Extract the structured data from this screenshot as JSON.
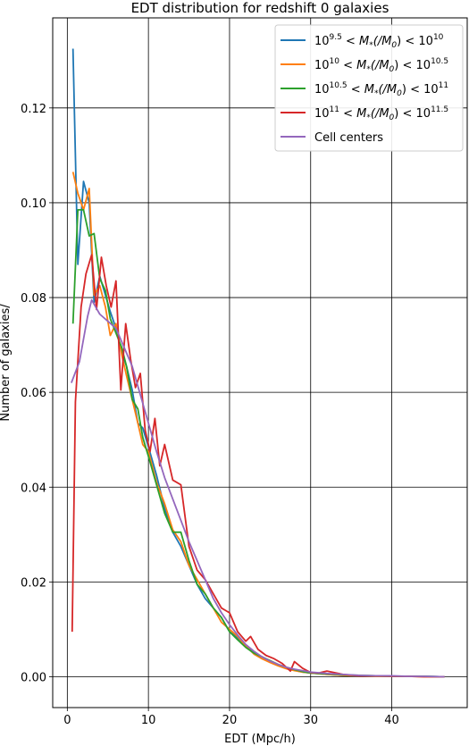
{
  "chart_data": {
    "type": "line",
    "title": "EDT distribution for redshift 0 galaxies",
    "xlabel": "EDT (Mpc/h)",
    "ylabel": "Number of galaxies/",
    "xlim": [
      -1.8,
      49.3
    ],
    "ylim": [
      -0.0065,
      0.139
    ],
    "xticks": [
      0,
      10,
      20,
      30,
      40
    ],
    "yticks": [
      0.0,
      0.02,
      0.04,
      0.06,
      0.08,
      0.1,
      0.12
    ],
    "ytick_labels": [
      "0.00",
      "0.02",
      "0.04",
      "0.06",
      "0.08",
      "0.10",
      "0.12"
    ],
    "grid": true,
    "grid_color": "#000000",
    "legend_position": "top-right",
    "series": [
      {
        "name": "10^{9.5} < M_*(/M_0) < 10^{10}",
        "legend": {
          "base1": "10",
          "exp1": "9.5",
          "mid": " < M",
          "sub": "*",
          "paren": "(/M",
          "sub0": "0",
          "close": ") < ",
          "base2": "10",
          "exp2": "10"
        },
        "color": "#1f77b4",
        "x": [
          0.7,
          1.3,
          2.0,
          2.7,
          3.3,
          4.0,
          4.7,
          5.3,
          6.0,
          6.7,
          7.3,
          8.0,
          8.7,
          9.3,
          10.0,
          11.0,
          12.0,
          13.0,
          14.0,
          15.0,
          16.0,
          17.0,
          18.0,
          19.0,
          20.0,
          21.0,
          22.0,
          23.0,
          24.0,
          25.0,
          26.0,
          27.0,
          28.0,
          29.0,
          30.0,
          32.0,
          34.0,
          36.0,
          38.0,
          40.0,
          42.0,
          44.0,
          46.5
        ],
        "y": [
          0.1325,
          0.087,
          0.1045,
          0.1,
          0.079,
          0.0845,
          0.0805,
          0.077,
          0.0735,
          0.0685,
          0.0655,
          0.0605,
          0.0535,
          0.0525,
          0.0485,
          0.0425,
          0.0355,
          0.0305,
          0.0275,
          0.0235,
          0.0195,
          0.0165,
          0.0145,
          0.0125,
          0.0095,
          0.0082,
          0.0065,
          0.005,
          0.0042,
          0.0032,
          0.0025,
          0.0018,
          0.0014,
          0.001,
          0.0008,
          0.0005,
          0.0003,
          0.0002,
          0.0002,
          0.0001,
          0.0001,
          0.0001,
          0.0
        ]
      },
      {
        "name": "10^{10} < M_*(/M_0) < 10^{10.5}",
        "legend": {
          "base1": "10",
          "exp1": "10",
          "mid": " < M",
          "sub": "*",
          "paren": "(/M",
          "sub0": "0",
          "close": ") < ",
          "base2": "10",
          "exp2": "10.5"
        },
        "color": "#ff7f0e",
        "x": [
          0.7,
          1.3,
          2.0,
          2.7,
          3.3,
          4.0,
          4.7,
          5.3,
          6.0,
          6.7,
          7.3,
          8.0,
          8.7,
          9.3,
          10.0,
          11.0,
          12.0,
          13.0,
          14.0,
          15.0,
          16.0,
          17.0,
          18.0,
          19.0,
          20.0,
          21.0,
          22.0,
          23.0,
          24.0,
          25.0,
          26.0,
          27.0,
          28.0,
          29.0,
          30.0,
          32.0,
          34.0,
          36.0,
          38.0,
          40.0,
          42.0,
          44.0,
          46.5
        ],
        "y": [
          0.1065,
          0.102,
          0.0985,
          0.103,
          0.0805,
          0.0825,
          0.078,
          0.072,
          0.0745,
          0.068,
          0.0635,
          0.0585,
          0.0535,
          0.049,
          0.0475,
          0.041,
          0.0365,
          0.031,
          0.0285,
          0.0235,
          0.0205,
          0.0175,
          0.0145,
          0.0115,
          0.01,
          0.0085,
          0.0065,
          0.0048,
          0.0038,
          0.003,
          0.0023,
          0.0017,
          0.0013,
          0.001,
          0.0008,
          0.0005,
          0.0003,
          0.0002,
          0.0001,
          0.0001,
          0.0001,
          0.0,
          0.0
        ]
      },
      {
        "name": "10^{10.5} < M_*(/M_0) < 10^{11}",
        "legend": {
          "base1": "10",
          "exp1": "10.5",
          "mid": " < M",
          "sub": "*",
          "paren": "(/M",
          "sub0": "0",
          "close": ") < ",
          "base2": "10",
          "exp2": "11"
        },
        "color": "#2ca02c",
        "x": [
          0.7,
          1.3,
          2.0,
          2.7,
          3.3,
          4.0,
          4.7,
          5.3,
          6.0,
          6.7,
          7.3,
          8.0,
          8.7,
          9.3,
          10.0,
          11.0,
          12.0,
          13.0,
          14.0,
          15.0,
          16.0,
          17.0,
          18.0,
          19.0,
          20.0,
          21.0,
          22.0,
          23.0,
          24.0,
          25.0,
          26.0,
          27.0,
          28.0,
          29.0,
          30.0,
          32.0,
          34.0,
          36.0,
          38.0,
          40.0,
          42.0,
          44.0,
          46.5
        ],
        "y": [
          0.0745,
          0.0985,
          0.0985,
          0.093,
          0.0935,
          0.084,
          0.0815,
          0.0755,
          0.0725,
          0.0695,
          0.0655,
          0.0585,
          0.0565,
          0.0505,
          0.0465,
          0.0405,
          0.0345,
          0.0305,
          0.0305,
          0.0245,
          0.0195,
          0.0175,
          0.0145,
          0.0125,
          0.0095,
          0.0078,
          0.0062,
          0.005,
          0.0042,
          0.0034,
          0.0026,
          0.002,
          0.0015,
          0.0011,
          0.0008,
          0.0006,
          0.0004,
          0.0003,
          0.0002,
          0.0001,
          0.0001,
          0.0001,
          0.0
        ]
      },
      {
        "name": "10^{11} < M_*(/M_0) < 10^{11.5}",
        "legend": {
          "base1": "10",
          "exp1": "11",
          "mid": " < M",
          "sub": "*",
          "paren": "(/M",
          "sub0": "0",
          "close": ") < ",
          "base2": "10",
          "exp2": "11.5"
        },
        "color": "#d62728",
        "x": [
          0.6,
          1.0,
          1.7,
          2.3,
          3.0,
          3.6,
          4.2,
          4.8,
          5.4,
          6.0,
          6.6,
          7.2,
          7.8,
          8.4,
          9.0,
          9.6,
          10.2,
          10.8,
          11.4,
          12.0,
          13.0,
          14.0,
          15.0,
          16.0,
          17.0,
          18.0,
          19.0,
          20.0,
          21.0,
          22.0,
          22.6,
          23.5,
          24.5,
          25.5,
          26.5,
          27.5,
          28.0,
          29.0,
          30.0,
          31.0,
          32.0,
          34.0,
          36.0,
          38.0,
          40.0,
          42.0,
          44.0,
          46.5
        ],
        "y": [
          0.0095,
          0.058,
          0.078,
          0.085,
          0.089,
          0.0775,
          0.0885,
          0.0825,
          0.078,
          0.0835,
          0.0605,
          0.0745,
          0.067,
          0.061,
          0.064,
          0.052,
          0.0475,
          0.0545,
          0.0445,
          0.049,
          0.0415,
          0.0405,
          0.0275,
          0.0225,
          0.0205,
          0.0175,
          0.0145,
          0.0135,
          0.0095,
          0.0075,
          0.0085,
          0.0058,
          0.0045,
          0.0038,
          0.0028,
          0.0012,
          0.0032,
          0.0018,
          0.0009,
          0.0008,
          0.0012,
          0.0005,
          0.0002,
          0.0002,
          0.0001,
          0.0001,
          0.0,
          0.0
        ]
      },
      {
        "name": "Cell centers",
        "legend": {
          "plain": "Cell centers"
        },
        "color": "#9467bd",
        "x": [
          0.5,
          1.5,
          2.5,
          3.0,
          3.5,
          4.0,
          5.0,
          6.0,
          7.0,
          8.0,
          9.0,
          10.0,
          11.0,
          12.0,
          13.0,
          14.0,
          15.0,
          16.0,
          17.0,
          18.0,
          19.0,
          20.0,
          21.0,
          22.0,
          23.0,
          24.0,
          25.0,
          26.0,
          27.0,
          28.0,
          30.0,
          32.0,
          34.0,
          36.0,
          38.0,
          40.0,
          42.0,
          44.0,
          46.5
        ],
        "y": [
          0.062,
          0.0665,
          0.076,
          0.0795,
          0.078,
          0.0765,
          0.075,
          0.0735,
          0.0695,
          0.0655,
          0.0595,
          0.0535,
          0.0475,
          0.042,
          0.0375,
          0.033,
          0.0285,
          0.0245,
          0.0205,
          0.0165,
          0.0135,
          0.011,
          0.0088,
          0.0068,
          0.0054,
          0.0042,
          0.0033,
          0.0026,
          0.002,
          0.0016,
          0.001,
          0.0007,
          0.0005,
          0.0003,
          0.0002,
          0.0002,
          0.0001,
          0.0001,
          0.0
        ]
      }
    ]
  }
}
